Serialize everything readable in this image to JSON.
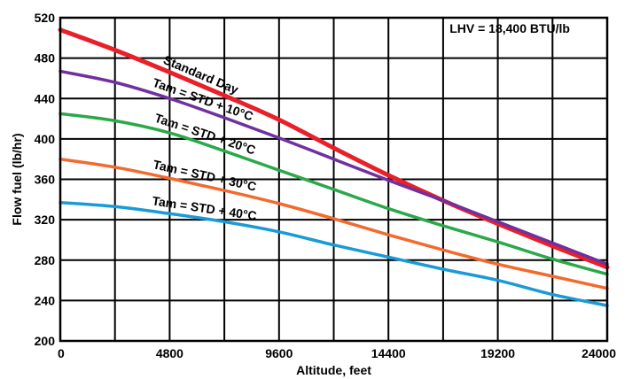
{
  "chart_data": {
    "type": "line",
    "title": "",
    "xlabel": "Altitude, feet",
    "ylabel": "Flow fuel (lb/hr)",
    "annotation": "LHV = 18,400 BTU/lb",
    "xlim": [
      0,
      24000
    ],
    "ylim": [
      200,
      520
    ],
    "x_ticks": [
      "0",
      "4800",
      "9600",
      "14400",
      "19200",
      "24000"
    ],
    "y_ticks": [
      "200",
      "240",
      "280",
      "320",
      "360",
      "400",
      "440",
      "480",
      "520"
    ],
    "grid": true,
    "series": [
      {
        "name": "Standard Day",
        "color": "#e8202a",
        "x": [
          0,
          2400,
          4800,
          7200,
          9600,
          12000,
          14400,
          16800,
          19200,
          21600,
          24000
        ],
        "y": [
          508,
          488,
          466,
          443,
          419,
          391,
          364,
          339,
          316,
          294,
          273
        ]
      },
      {
        "name": "Tam = STD + 10°C",
        "color": "#7030a0",
        "x": [
          0,
          2400,
          4800,
          7200,
          9600,
          12000,
          14400,
          16800,
          19200,
          21600,
          24000
        ],
        "y": [
          467,
          456,
          440,
          421,
          401,
          380,
          359,
          339,
          318,
          297,
          276
        ]
      },
      {
        "name": "Tam = STD + 20°C",
        "color": "#2ca84a",
        "x": [
          0,
          2400,
          4800,
          7200,
          9600,
          12000,
          14400,
          16800,
          19200,
          21600,
          24000
        ],
        "y": [
          425,
          418,
          406,
          388,
          369,
          350,
          331,
          314,
          298,
          281,
          266
        ]
      },
      {
        "name": "Tam = STD + 30°C",
        "color": "#f26a2e",
        "x": [
          0,
          2400,
          4800,
          7200,
          9600,
          12000,
          14400,
          16800,
          19200,
          21600,
          24000
        ],
        "y": [
          380,
          372,
          361,
          349,
          336,
          321,
          305,
          290,
          276,
          264,
          252
        ]
      },
      {
        "name": "Tam = STD + 40°C",
        "color": "#1a9ad6",
        "x": [
          0,
          2400,
          4800,
          7200,
          9600,
          12000,
          14400,
          16800,
          19200,
          21600,
          24000
        ],
        "y": [
          337,
          333,
          326,
          318,
          308,
          295,
          283,
          271,
          260,
          246,
          235
        ]
      }
    ]
  }
}
